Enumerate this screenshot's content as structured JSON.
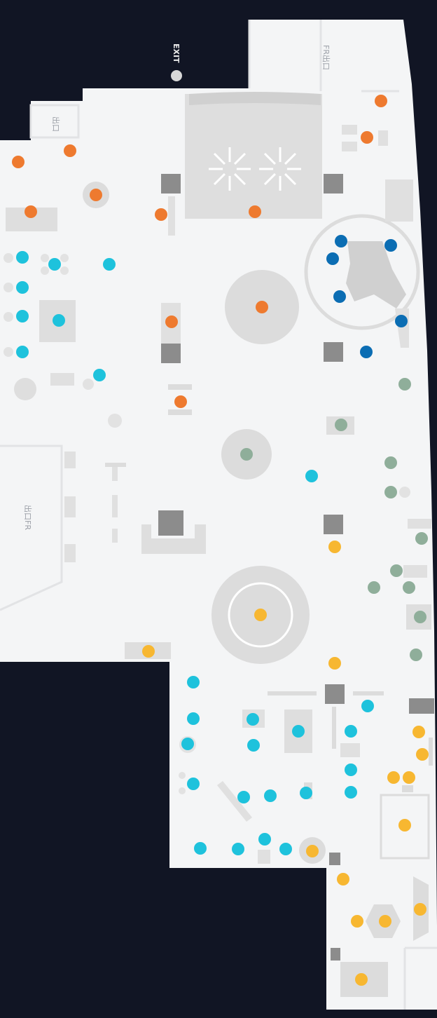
{
  "map": {
    "colors": {
      "background": "#111524",
      "floor": "#f4f5f6",
      "fixture_light": "#dcdcdc",
      "fixture_mid": "#cfcfcf",
      "fixture_dark": "#8c8c8c",
      "wall_line": "#e2e3e5"
    },
    "labels": {
      "exit": "EXIT",
      "room_a": "FR出口",
      "room_b": "出口FR",
      "room_c": "出口"
    },
    "marker_categories": [
      {
        "id": "orange",
        "color": "#ee7a2f"
      },
      {
        "id": "cyan",
        "color": "#1ec2dc"
      },
      {
        "id": "blue",
        "color": "#0b6db3"
      },
      {
        "id": "sage",
        "color": "#8fae9a"
      },
      {
        "id": "yellow",
        "color": "#f7b731"
      }
    ]
  }
}
